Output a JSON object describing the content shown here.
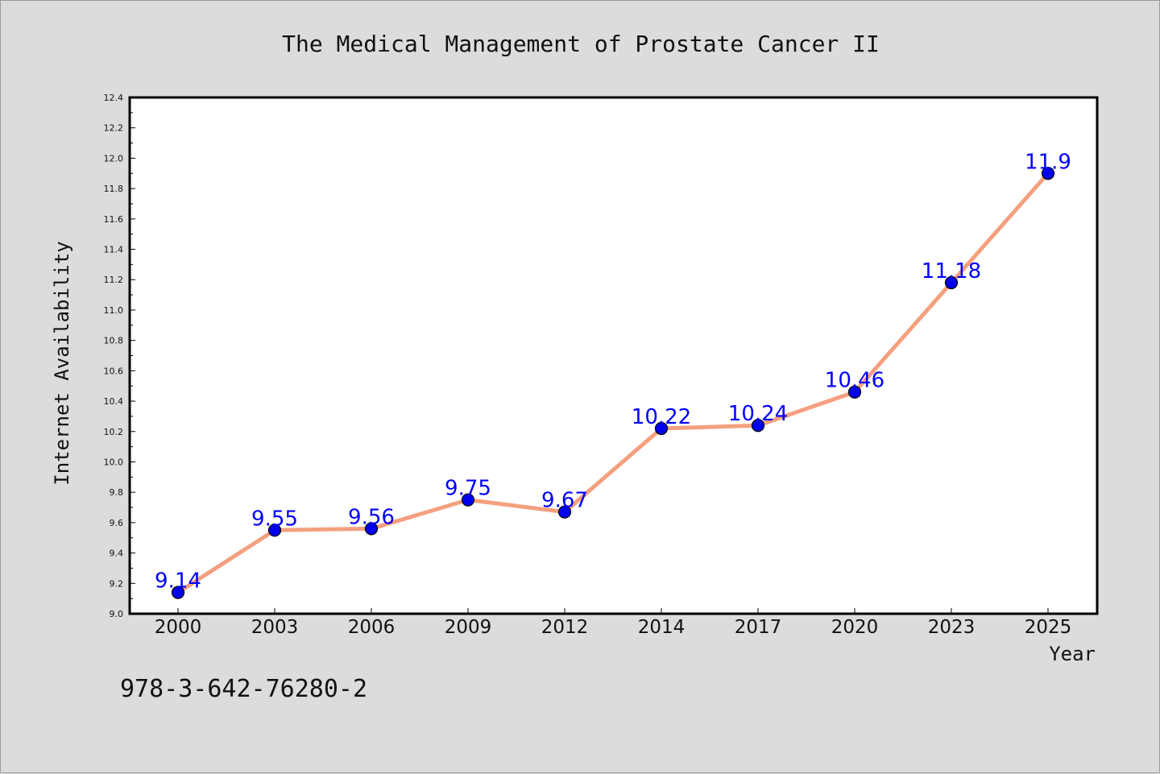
{
  "chart_data": {
    "type": "line",
    "title": "The Medical Management of Prostate Cancer II",
    "xlabel": "Year",
    "ylabel": "Internet Availability",
    "categories": [
      "2000",
      "2003",
      "2006",
      "2009",
      "2012",
      "2014",
      "2017",
      "2020",
      "2023",
      "2025"
    ],
    "series": [
      {
        "values": [
          9.14,
          9.55,
          9.56,
          9.75,
          9.67,
          10.22,
          10.24,
          10.46,
          11.18,
          11.9
        ],
        "data_labels": [
          "9.14",
          "9.55",
          "9.56",
          "9.75",
          "9.67",
          "10.22",
          "10.24",
          "10.46",
          "11.18",
          "11.9"
        ],
        "line_color": "#f4a07f",
        "marker_color": "#0000ee"
      }
    ],
    "ylim": [
      9.0,
      12.4
    ],
    "yticks": [
      "9.0",
      "9.2",
      "9.4",
      "9.6",
      "9.8",
      "10.0",
      "10.2",
      "10.4",
      "10.6",
      "10.8",
      "11.0",
      "11.2",
      "11.4",
      "11.6",
      "11.8",
      "12.0",
      "12.2",
      "12.4"
    ],
    "grid": false,
    "data_label_color": "#0000ff",
    "plot_background": "#ffffff",
    "figure_background": "#dcdcdc"
  },
  "footer": {
    "isbn": "978-3-642-76280-2"
  }
}
